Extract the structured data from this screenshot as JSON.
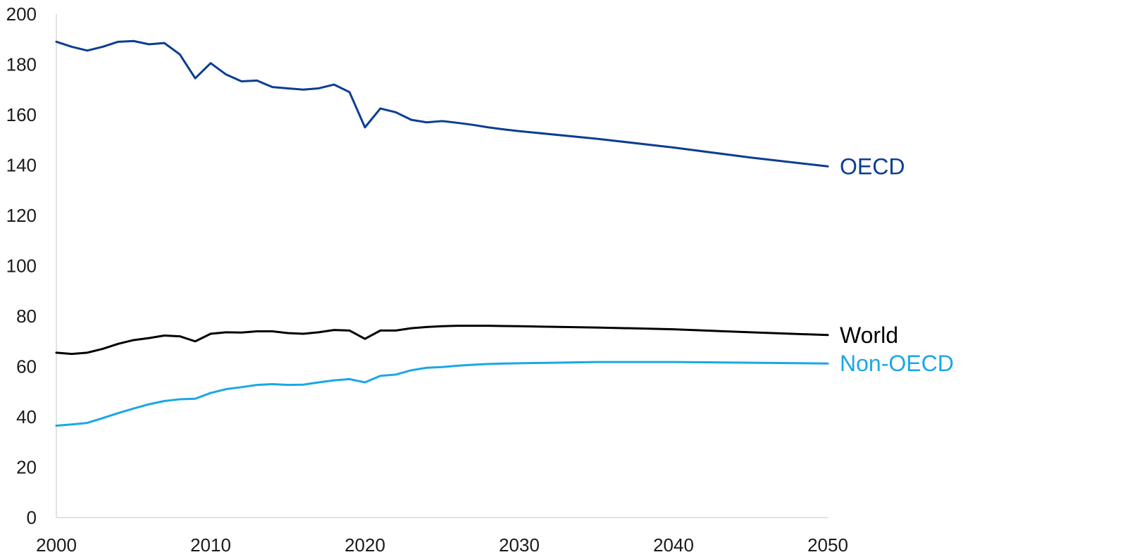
{
  "chart_data": {
    "type": "line",
    "title": "",
    "xlabel": "",
    "ylabel": "",
    "xlim": [
      2000,
      2050
    ],
    "ylim": [
      0,
      200
    ],
    "x_ticks": [
      "2000",
      "2010",
      "2020",
      "2030",
      "2040",
      "2050"
    ],
    "y_ticks": [
      "0",
      "20",
      "40",
      "60",
      "80",
      "100",
      "120",
      "140",
      "160",
      "180",
      "200"
    ],
    "grid": false,
    "legend": "direct labels at right end of lines",
    "series": [
      {
        "name": "OECD",
        "color": "#0b3d91",
        "points": [
          [
            2000,
            189
          ],
          [
            2001,
            187
          ],
          [
            2002,
            185.5
          ],
          [
            2003,
            187
          ],
          [
            2004,
            189
          ],
          [
            2005,
            189.3
          ],
          [
            2006,
            188
          ],
          [
            2007,
            188.5
          ],
          [
            2008,
            184
          ],
          [
            2009,
            174.5
          ],
          [
            2010,
            180.5
          ],
          [
            2011,
            176
          ],
          [
            2012,
            173.3
          ],
          [
            2013,
            173.6
          ],
          [
            2014,
            171
          ],
          [
            2015,
            170.5
          ],
          [
            2016,
            170
          ],
          [
            2017,
            170.5
          ],
          [
            2018,
            172
          ],
          [
            2019,
            169
          ],
          [
            2020,
            155
          ],
          [
            2021,
            162.5
          ],
          [
            2022,
            161
          ],
          [
            2023,
            158
          ],
          [
            2024,
            157
          ],
          [
            2025,
            157.5
          ],
          [
            2026,
            156.8
          ],
          [
            2027,
            156
          ],
          [
            2028,
            155
          ],
          [
            2029,
            154.2
          ],
          [
            2030,
            153.5
          ],
          [
            2035,
            150.5
          ],
          [
            2040,
            147
          ],
          [
            2045,
            143
          ],
          [
            2050,
            139.5
          ]
        ]
      },
      {
        "name": "World",
        "color": "#000000",
        "points": [
          [
            2000,
            65.5
          ],
          [
            2001,
            65
          ],
          [
            2002,
            65.5
          ],
          [
            2003,
            67
          ],
          [
            2004,
            69
          ],
          [
            2005,
            70.5
          ],
          [
            2006,
            71.3
          ],
          [
            2007,
            72.3
          ],
          [
            2008,
            72
          ],
          [
            2009,
            70
          ],
          [
            2010,
            73
          ],
          [
            2011,
            73.6
          ],
          [
            2012,
            73.5
          ],
          [
            2013,
            74
          ],
          [
            2014,
            74
          ],
          [
            2015,
            73.3
          ],
          [
            2016,
            73
          ],
          [
            2017,
            73.6
          ],
          [
            2018,
            74.5
          ],
          [
            2019,
            74.3
          ],
          [
            2020,
            71
          ],
          [
            2021,
            74.3
          ],
          [
            2022,
            74.3
          ],
          [
            2023,
            75.2
          ],
          [
            2024,
            75.7
          ],
          [
            2025,
            76
          ],
          [
            2026,
            76.2
          ],
          [
            2027,
            76.2
          ],
          [
            2028,
            76.2
          ],
          [
            2029,
            76.1
          ],
          [
            2030,
            76
          ],
          [
            2035,
            75.5
          ],
          [
            2040,
            74.8
          ],
          [
            2045,
            73.6
          ],
          [
            2050,
            72.5
          ]
        ]
      },
      {
        "name": "Non-OECD",
        "color": "#1aa7e6",
        "points": [
          [
            2000,
            36.5
          ],
          [
            2001,
            37
          ],
          [
            2002,
            37.6
          ],
          [
            2003,
            39.5
          ],
          [
            2004,
            41.5
          ],
          [
            2005,
            43.3
          ],
          [
            2006,
            45
          ],
          [
            2007,
            46.3
          ],
          [
            2008,
            47
          ],
          [
            2009,
            47.2
          ],
          [
            2010,
            49.5
          ],
          [
            2011,
            51
          ],
          [
            2012,
            51.8
          ],
          [
            2013,
            52.7
          ],
          [
            2014,
            53
          ],
          [
            2015,
            52.7
          ],
          [
            2016,
            52.8
          ],
          [
            2017,
            53.7
          ],
          [
            2018,
            54.5
          ],
          [
            2019,
            55
          ],
          [
            2020,
            53.7
          ],
          [
            2021,
            56.3
          ],
          [
            2022,
            56.8
          ],
          [
            2023,
            58.5
          ],
          [
            2024,
            59.5
          ],
          [
            2025,
            59.8
          ],
          [
            2026,
            60.3
          ],
          [
            2027,
            60.7
          ],
          [
            2028,
            61
          ],
          [
            2029,
            61.2
          ],
          [
            2030,
            61.3
          ],
          [
            2035,
            61.8
          ],
          [
            2040,
            61.8
          ],
          [
            2045,
            61.5
          ],
          [
            2050,
            61.2
          ]
        ]
      }
    ]
  }
}
